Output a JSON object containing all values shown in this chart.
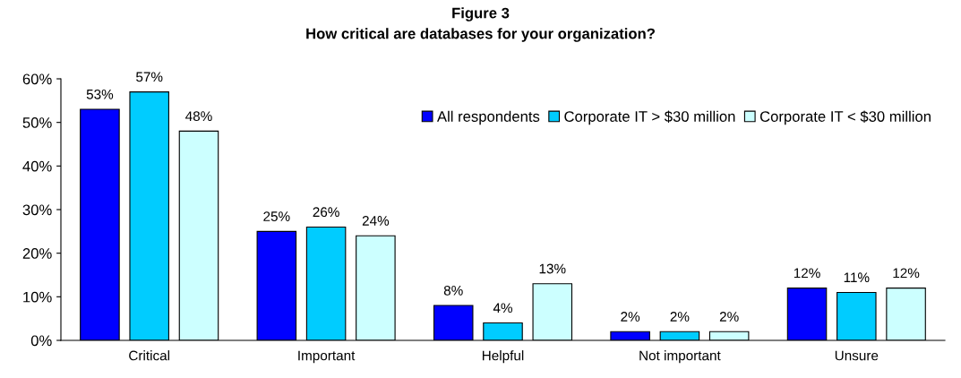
{
  "chart_data": {
    "type": "bar",
    "title": "Figure 3",
    "subtitle": "How critical are databases for your organization?",
    "categories": [
      "Critical",
      "Important",
      "Helpful",
      "Not important",
      "Unsure"
    ],
    "series": [
      {
        "name": "All respondents",
        "color": "#0000ff",
        "values": [
          53,
          25,
          8,
          2,
          12
        ],
        "value_labels": [
          "53%",
          "25%",
          "8%",
          "2%",
          "12%"
        ]
      },
      {
        "name": "Corporate IT > $30 million",
        "color": "#00ccff",
        "values": [
          57,
          26,
          4,
          2,
          11
        ],
        "value_labels": [
          "57%",
          "26%",
          "4%",
          "2%",
          "11%"
        ]
      },
      {
        "name": "Corporate IT < $30 million",
        "color": "#ccffff",
        "values": [
          48,
          24,
          13,
          2,
          12
        ],
        "value_labels": [
          "48%",
          "24%",
          "13%",
          "2%",
          "12%"
        ]
      }
    ],
    "ylim": [
      0,
      60
    ],
    "yticks": [
      {
        "value": 0,
        "label": "0%"
      },
      {
        "value": 10,
        "label": "10%"
      },
      {
        "value": 20,
        "label": "20%"
      },
      {
        "value": 30,
        "label": "30%"
      },
      {
        "value": 40,
        "label": "40%"
      },
      {
        "value": 50,
        "label": "50%"
      },
      {
        "value": 60,
        "label": "60%"
      }
    ],
    "grid": false,
    "legend": "top right"
  }
}
